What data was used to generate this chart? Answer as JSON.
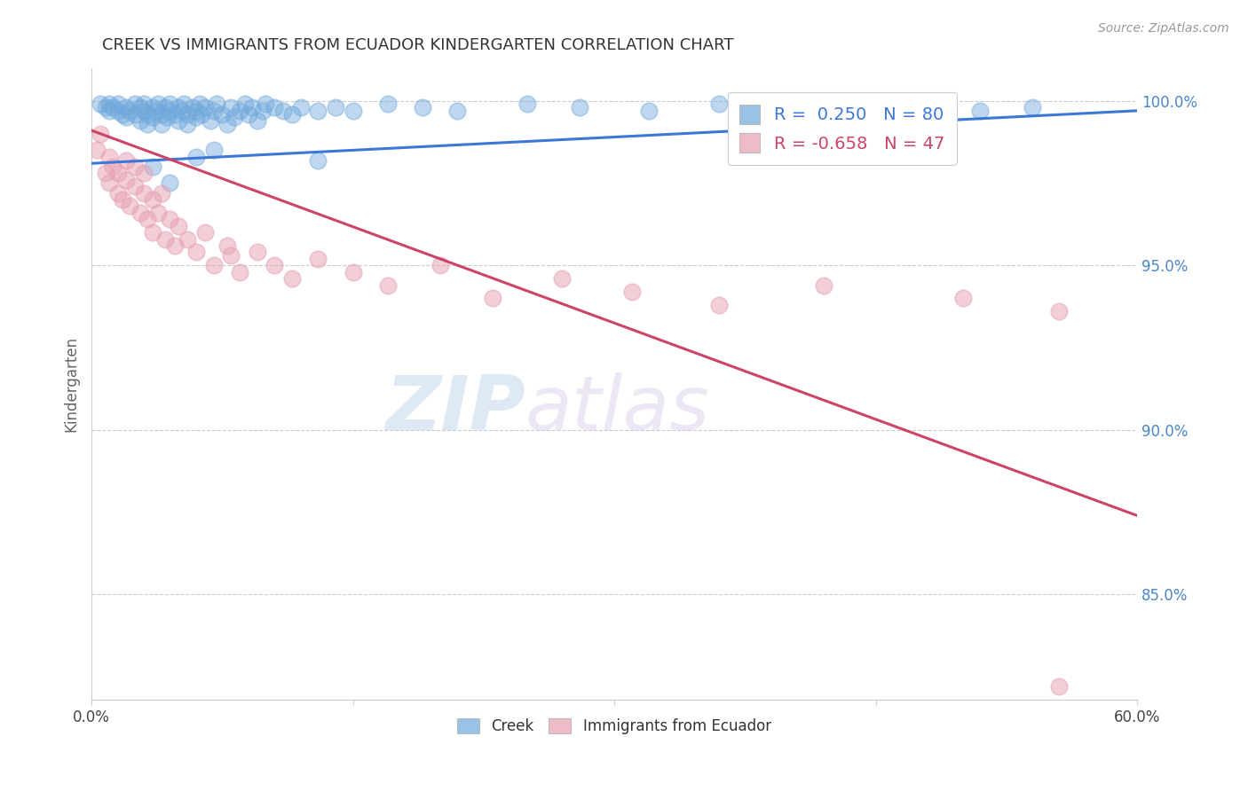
{
  "title": "CREEK VS IMMIGRANTS FROM ECUADOR KINDERGARTEN CORRELATION CHART",
  "source": "Source: ZipAtlas.com",
  "ylabel": "Kindergarten",
  "right_ytick_labels": [
    "100.0%",
    "95.0%",
    "90.0%",
    "85.0%"
  ],
  "right_ytick_values": [
    1.0,
    0.95,
    0.9,
    0.85
  ],
  "xlim": [
    0.0,
    0.6
  ],
  "ylim": [
    0.818,
    1.01
  ],
  "blue_color": "#6fa8dc",
  "pink_color": "#e6a0b0",
  "blue_line_color": "#3c78d8",
  "pink_line_color": "#cc4466",
  "legend_blue_label": "R =  0.250   N = 80",
  "legend_pink_label": "R = -0.658   N = 47",
  "creek_label": "Creek",
  "ecuador_label": "Immigrants from Ecuador",
  "watermark_zip": "ZIP",
  "watermark_atlas": "atlas",
  "blue_scatter_x": [
    0.005,
    0.008,
    0.01,
    0.01,
    0.012,
    0.015,
    0.015,
    0.018,
    0.02,
    0.02,
    0.022,
    0.025,
    0.025,
    0.028,
    0.028,
    0.03,
    0.03,
    0.032,
    0.032,
    0.035,
    0.035,
    0.037,
    0.038,
    0.04,
    0.04,
    0.042,
    0.043,
    0.045,
    0.045,
    0.048,
    0.05,
    0.05,
    0.052,
    0.053,
    0.055,
    0.055,
    0.058,
    0.06,
    0.06,
    0.062,
    0.063,
    0.065,
    0.068,
    0.07,
    0.072,
    0.075,
    0.078,
    0.08,
    0.082,
    0.085,
    0.088,
    0.09,
    0.092,
    0.095,
    0.098,
    0.1,
    0.105,
    0.11,
    0.115,
    0.12,
    0.13,
    0.14,
    0.15,
    0.17,
    0.19,
    0.21,
    0.25,
    0.28,
    0.32,
    0.36,
    0.4,
    0.44,
    0.48,
    0.51,
    0.54,
    0.13,
    0.07,
    0.06,
    0.045,
    0.035
  ],
  "blue_scatter_y": [
    0.999,
    0.998,
    0.997,
    0.999,
    0.998,
    0.997,
    0.999,
    0.996,
    0.998,
    0.995,
    0.997,
    0.999,
    0.996,
    0.998,
    0.994,
    0.997,
    0.999,
    0.996,
    0.993,
    0.998,
    0.995,
    0.997,
    0.999,
    0.996,
    0.993,
    0.998,
    0.995,
    0.997,
    0.999,
    0.996,
    0.998,
    0.994,
    0.997,
    0.999,
    0.996,
    0.993,
    0.998,
    0.995,
    0.997,
    0.999,
    0.996,
    0.998,
    0.994,
    0.997,
    0.999,
    0.996,
    0.993,
    0.998,
    0.995,
    0.997,
    0.999,
    0.996,
    0.998,
    0.994,
    0.997,
    0.999,
    0.998,
    0.997,
    0.996,
    0.998,
    0.997,
    0.998,
    0.997,
    0.999,
    0.998,
    0.997,
    0.999,
    0.998,
    0.997,
    0.999,
    0.998,
    0.999,
    0.998,
    0.997,
    0.998,
    0.982,
    0.985,
    0.983,
    0.975,
    0.98
  ],
  "pink_scatter_x": [
    0.003,
    0.005,
    0.008,
    0.01,
    0.01,
    0.012,
    0.015,
    0.015,
    0.018,
    0.02,
    0.02,
    0.022,
    0.025,
    0.025,
    0.028,
    0.03,
    0.03,
    0.032,
    0.035,
    0.035,
    0.038,
    0.04,
    0.042,
    0.045,
    0.048,
    0.05,
    0.055,
    0.06,
    0.065,
    0.07,
    0.078,
    0.085,
    0.095,
    0.105,
    0.115,
    0.13,
    0.15,
    0.17,
    0.2,
    0.23,
    0.27,
    0.31,
    0.36,
    0.42,
    0.5,
    0.555,
    0.08
  ],
  "pink_scatter_y": [
    0.985,
    0.99,
    0.978,
    0.983,
    0.975,
    0.98,
    0.972,
    0.978,
    0.97,
    0.976,
    0.982,
    0.968,
    0.974,
    0.98,
    0.966,
    0.972,
    0.978,
    0.964,
    0.97,
    0.96,
    0.966,
    0.972,
    0.958,
    0.964,
    0.956,
    0.962,
    0.958,
    0.954,
    0.96,
    0.95,
    0.956,
    0.948,
    0.954,
    0.95,
    0.946,
    0.952,
    0.948,
    0.944,
    0.95,
    0.94,
    0.946,
    0.942,
    0.938,
    0.944,
    0.94,
    0.936,
    0.953
  ],
  "pink_outlier_x": [
    0.555
  ],
  "pink_outlier_y": [
    0.822
  ],
  "blue_line_x": [
    0.0,
    0.6
  ],
  "blue_line_y": [
    0.981,
    0.997
  ],
  "pink_line_x": [
    0.0,
    0.6
  ],
  "pink_line_y": [
    0.991,
    0.874
  ],
  "background_color": "#ffffff",
  "grid_color": "#cccccc",
  "title_color": "#333333",
  "axis_label_color": "#666666",
  "right_axis_color": "#4a86c8",
  "source_color": "#999999"
}
